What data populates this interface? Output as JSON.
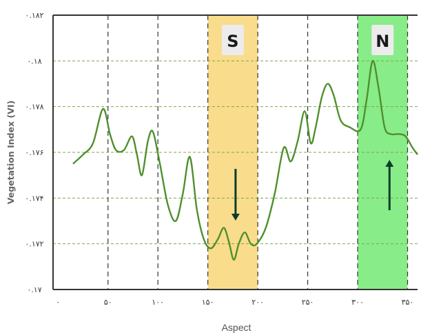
{
  "chart_data": {
    "type": "line",
    "title": "",
    "xlabel": "Aspect",
    "ylabel": "Vegetation Index (VI)",
    "xlim": [
      -5,
      360
    ],
    "ylim": [
      0.17,
      0.182
    ],
    "x_ticks": [
      {
        "value": 0,
        "label": "۰"
      },
      {
        "value": 50,
        "label": "۵۰"
      },
      {
        "value": 100,
        "label": "۱۰۰"
      },
      {
        "value": 150,
        "label": "۱۵۰"
      },
      {
        "value": 200,
        "label": "۲۰۰"
      },
      {
        "value": 250,
        "label": "۲۵۰"
      },
      {
        "value": 300,
        "label": "۳۰۰"
      },
      {
        "value": 350,
        "label": "۳۵۰"
      }
    ],
    "y_ticks": [
      {
        "value": 0.17,
        "label": "۰.۱۷"
      },
      {
        "value": 0.172,
        "label": "۰.۱۷۲"
      },
      {
        "value": 0.174,
        "label": "۰.۱۷۴"
      },
      {
        "value": 0.176,
        "label": "۰.۱۷۶"
      },
      {
        "value": 0.178,
        "label": "۰.۱۷۸"
      },
      {
        "value": 0.18,
        "label": "۰.۱۸"
      },
      {
        "value": 0.182,
        "label": "۰.۱۸۲"
      }
    ],
    "grid": true,
    "bands": [
      {
        "label": "S",
        "x_start": 150,
        "x_end": 200,
        "color": "#f9dc8c",
        "arrow": "down"
      },
      {
        "label": "N",
        "x_start": 300,
        "x_end": 350,
        "color": "#88ec88",
        "arrow": "up"
      }
    ],
    "series": [
      {
        "color": "#4f8f2d",
        "points": [
          [
            15,
            0.1755
          ],
          [
            25,
            0.1759
          ],
          [
            35,
            0.1764
          ],
          [
            45,
            0.1779
          ],
          [
            52,
            0.1768
          ],
          [
            58,
            0.1761
          ],
          [
            66,
            0.1761
          ],
          [
            74,
            0.1767
          ],
          [
            79,
            0.1759
          ],
          [
            84,
            0.175
          ],
          [
            90,
            0.1765
          ],
          [
            95,
            0.1769
          ],
          [
            102,
            0.1755
          ],
          [
            110,
            0.1737
          ],
          [
            118,
            0.173
          ],
          [
            125,
            0.1742
          ],
          [
            132,
            0.1758
          ],
          [
            139,
            0.1735
          ],
          [
            146,
            0.1722
          ],
          [
            153,
            0.1718
          ],
          [
            160,
            0.1722
          ],
          [
            166,
            0.1727
          ],
          [
            171,
            0.1721
          ],
          [
            176,
            0.1713
          ],
          [
            181,
            0.172
          ],
          [
            187,
            0.1725
          ],
          [
            193,
            0.172
          ],
          [
            199,
            0.172
          ],
          [
            208,
            0.1727
          ],
          [
            217,
            0.1742
          ],
          [
            226,
            0.1762
          ],
          [
            233,
            0.1756
          ],
          [
            240,
            0.1765
          ],
          [
            247,
            0.1778
          ],
          [
            253,
            0.1764
          ],
          [
            258,
            0.1771
          ],
          [
            264,
            0.1784
          ],
          [
            270,
            0.179
          ],
          [
            276,
            0.1785
          ],
          [
            283,
            0.1774
          ],
          [
            292,
            0.1771
          ],
          [
            303,
            0.177
          ],
          [
            309,
            0.1783
          ],
          [
            315,
            0.18
          ],
          [
            321,
            0.1788
          ],
          [
            327,
            0.1771
          ],
          [
            333,
            0.1768
          ],
          [
            341,
            0.1768
          ],
          [
            348,
            0.1767
          ],
          [
            355,
            0.1762
          ],
          [
            360,
            0.1759
          ]
        ]
      }
    ]
  }
}
